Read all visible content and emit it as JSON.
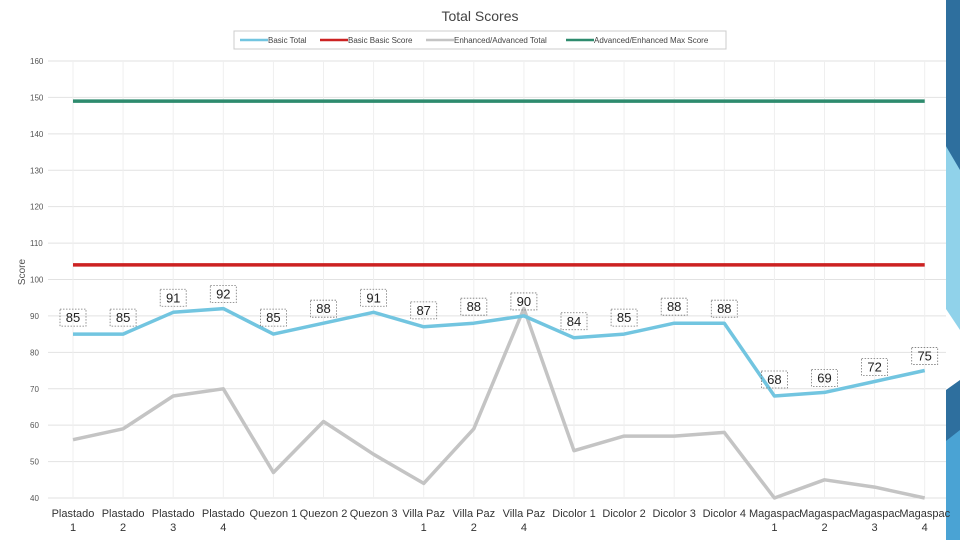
{
  "colors": {
    "accent_dark": "#2e6f9e",
    "accent_mid": "#4aa3d4",
    "accent_light": "#84cde8"
  },
  "chart_data": {
    "type": "line",
    "title": "Total Scores",
    "ylabel": "Score",
    "xlabel": "",
    "ylim": [
      40,
      160
    ],
    "yticks": [
      40,
      50,
      60,
      70,
      80,
      90,
      100,
      110,
      120,
      130,
      140,
      150,
      160
    ],
    "grid": true,
    "legend_position": "top-center",
    "categories": [
      [
        "Plastado",
        "1"
      ],
      [
        "Plastado",
        "2"
      ],
      [
        "Plastado",
        "3"
      ],
      [
        "Plastado",
        "4"
      ],
      [
        "Quezon 1",
        ""
      ],
      [
        "Quezon 2",
        ""
      ],
      [
        "Quezon 3",
        ""
      ],
      [
        "Villa Paz",
        "1"
      ],
      [
        "Villa Paz",
        "2"
      ],
      [
        "Villa Paz",
        "4"
      ],
      [
        "Dicolor 1",
        ""
      ],
      [
        "Dicolor 2",
        ""
      ],
      [
        "Dicolor 3",
        ""
      ],
      [
        "Dicolor 4",
        ""
      ],
      [
        "Magaspac",
        "1"
      ],
      [
        "Magaspac",
        "2"
      ],
      [
        "Magaspac",
        "3"
      ],
      [
        "Magaspac",
        "4"
      ]
    ],
    "series": [
      {
        "name": "Basic Total",
        "color": "#72c5e0",
        "values": [
          85,
          85,
          91,
          92,
          85,
          88,
          91,
          87,
          88,
          90,
          84,
          85,
          88,
          88,
          68,
          69,
          72,
          75
        ],
        "data_labels": true
      },
      {
        "name": "Basic Basic Score",
        "color": "#cc2222",
        "values": [
          104,
          104,
          104,
          104,
          104,
          104,
          104,
          104,
          104,
          104,
          104,
          104,
          104,
          104,
          104,
          104,
          104,
          104
        ],
        "data_labels": false
      },
      {
        "name": "Enhanced/Advanced Total",
        "color": "#c4c4c4",
        "values": [
          56,
          59,
          68,
          70,
          47,
          61,
          52,
          44,
          59,
          92,
          53,
          57,
          57,
          58,
          40,
          45,
          43,
          40
        ],
        "data_labels": false
      },
      {
        "name": "Advanced/Enhanced Max Score",
        "color": "#2e8b6e",
        "values": [
          149,
          149,
          149,
          149,
          149,
          149,
          149,
          149,
          149,
          149,
          149,
          149,
          149,
          149,
          149,
          149,
          149,
          149
        ],
        "data_labels": false
      }
    ]
  }
}
